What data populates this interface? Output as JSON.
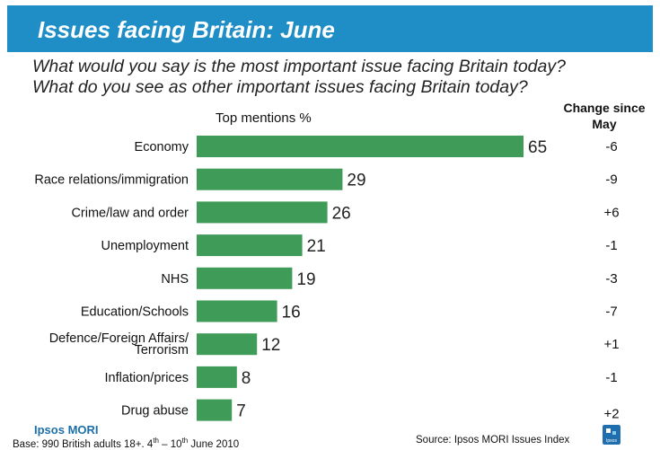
{
  "header": {
    "title": "Issues facing Britain: June",
    "question_1": "What would you say is the most important issue facing Britain today?",
    "question_2": "What do you see as other important issues facing Britain today?"
  },
  "chart_data": {
    "type": "bar",
    "orientation": "horizontal",
    "subtitle": "Top mentions %",
    "change_header": [
      "Change since",
      "May"
    ],
    "categories": [
      "Economy",
      "Race relations/immigration",
      "Crime/law and order",
      "Unemployment",
      "NHS",
      "Education/Schools",
      "Defence/Foreign Affairs/ Terrorism",
      "Inflation/prices",
      "Drug abuse"
    ],
    "category_lines": [
      [
        "Economy"
      ],
      [
        "Race relations/immigration"
      ],
      [
        "Crime/law and order"
      ],
      [
        "Unemployment"
      ],
      [
        "NHS"
      ],
      [
        "Education/Schools"
      ],
      [
        "Defence/Foreign Affairs/",
        "Terrorism"
      ],
      [
        "Inflation/prices"
      ],
      [
        "Drug abuse"
      ]
    ],
    "values": [
      65,
      29,
      26,
      21,
      19,
      16,
      12,
      8,
      7
    ],
    "change_since_may": [
      "-6",
      "-9",
      "+6",
      "-1",
      "-3",
      "-7",
      "+1",
      "-1",
      "+2"
    ],
    "bar_color": "#3f9b58"
  },
  "footer": {
    "brand": "Ipsos MORI",
    "base_pre": "Base: 990 British adults 18+. 4",
    "base_sup1": "th",
    "base_mid": " – 10",
    "base_sup2": "th",
    "base_post": " June 2010",
    "source": "Source: Ipsos MORI Issues Index",
    "logo_text": "Ipsos"
  },
  "colors": {
    "banner": "#1f8ec6",
    "bar": "#3f9b58"
  }
}
